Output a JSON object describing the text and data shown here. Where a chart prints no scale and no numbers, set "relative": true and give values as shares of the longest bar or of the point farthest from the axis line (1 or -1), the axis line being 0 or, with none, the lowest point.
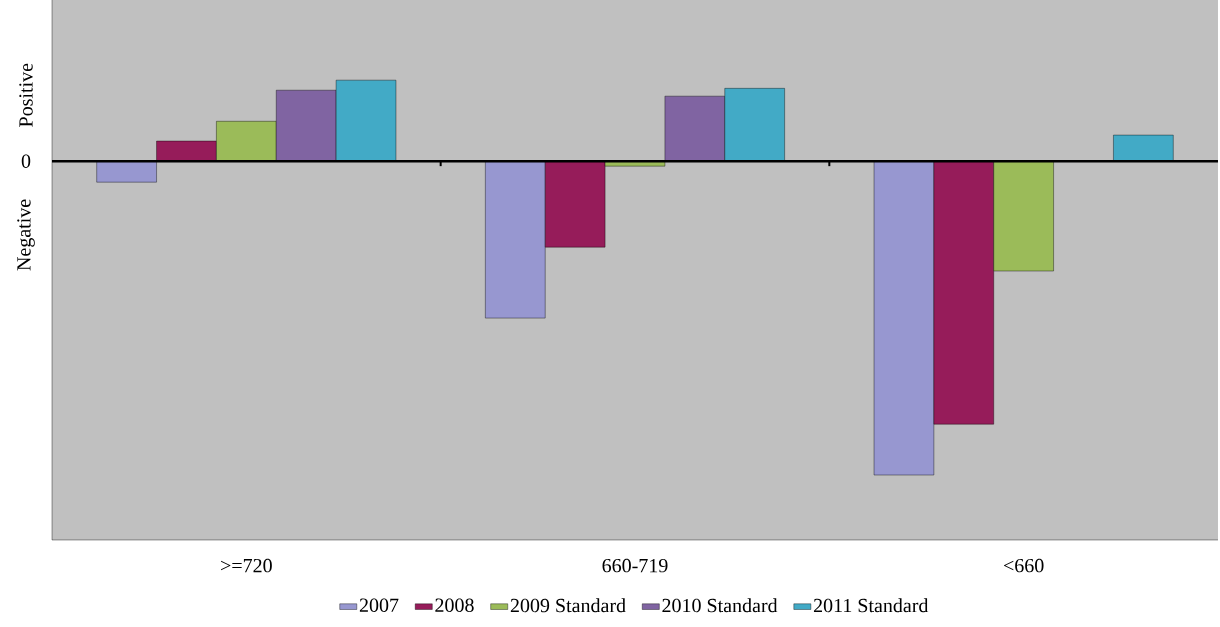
{
  "chart_data": {
    "type": "bar",
    "relative": true,
    "categories": [
      ">=720",
      "660-719",
      "<660"
    ],
    "series": [
      {
        "name": "2007",
        "color": "#9797d0",
        "values": [
          -0.067,
          -0.5,
          -1
        ]
      },
      {
        "name": "2008",
        "color": "#961c5a",
        "values": [
          0.064,
          -0.274,
          -0.838
        ]
      },
      {
        "name": "2009 Standard",
        "color": "#9bbb59",
        "values": [
          0.127,
          -0.016,
          -0.35
        ]
      },
      {
        "name": "2010 Standard",
        "color": "#8064a2",
        "values": [
          0.226,
          0.207,
          null
        ]
      },
      {
        "name": "2011 Standard",
        "color": "#42aac6",
        "values": [
          0.258,
          0.232,
          0.083
        ]
      }
    ],
    "annotations": [
      "Positive",
      "0",
      "Negative"
    ],
    "legend": "bottom"
  }
}
